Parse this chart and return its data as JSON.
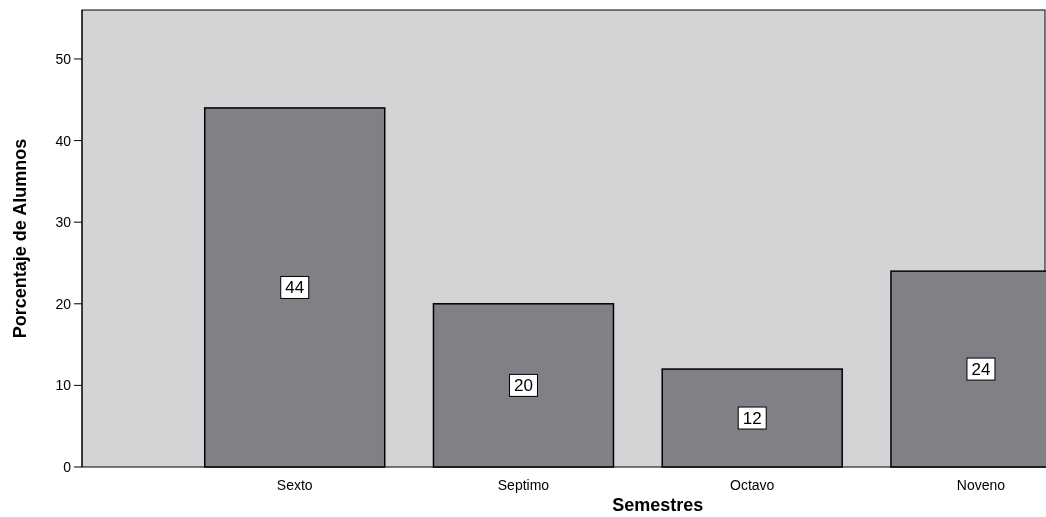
{
  "chart_data": {
    "type": "bar",
    "xlabel": "Semestres",
    "ylabel": "Porcentaje de Alumnos",
    "categories": [
      "Sexto",
      "Septimo",
      "Octavo",
      "Noveno"
    ],
    "values": [
      44,
      20,
      12,
      24
    ],
    "color": "#808086",
    "ylim": [
      0,
      56
    ],
    "yticks": [
      0,
      10,
      20,
      30,
      40,
      50
    ],
    "grid": false,
    "data_labels": true
  }
}
